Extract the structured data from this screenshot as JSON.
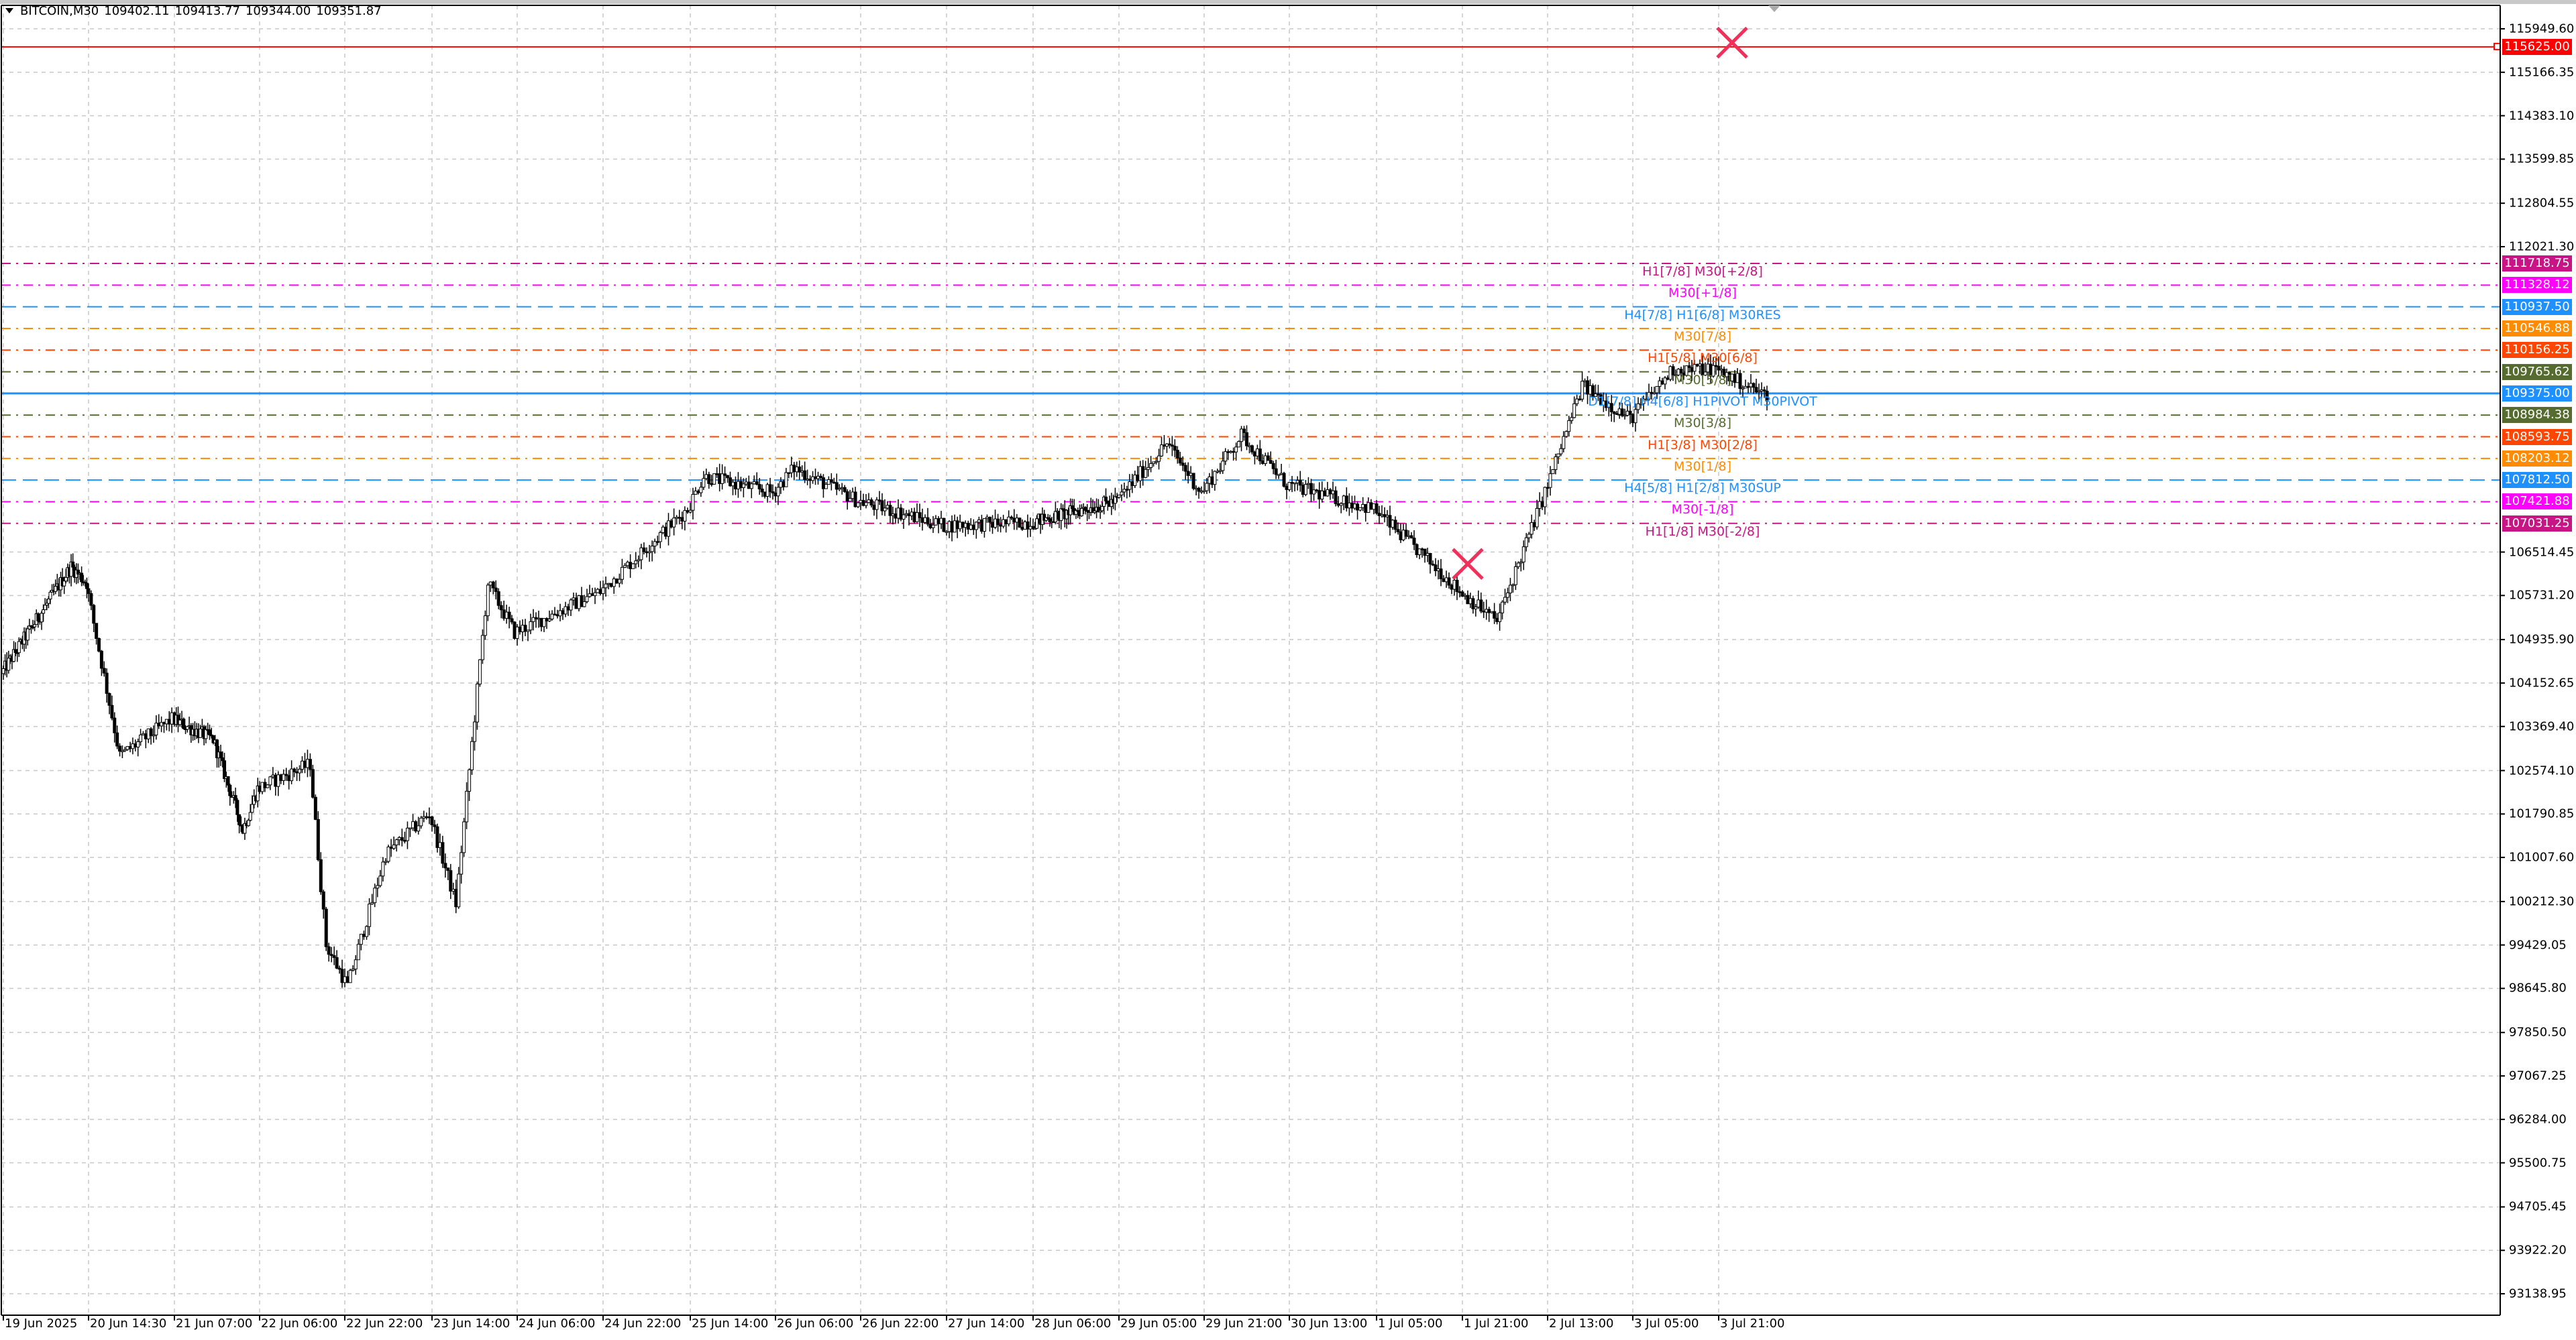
{
  "header": {
    "symbol": "BITCOIN,M30",
    "open": "109402.11",
    "high": "109413.77",
    "low": "109344.00",
    "close": "109351.87"
  },
  "price_axis": [
    "115949.60",
    "115166.35",
    "114383.10",
    "113599.85",
    "112804.55",
    "112021.30",
    "106514.45",
    "105731.20",
    "104935.90",
    "104152.65",
    "103369.40",
    "102574.10",
    "101790.85",
    "101007.60",
    "100212.30",
    "99429.05",
    "98645.80",
    "97850.50",
    "97067.25",
    "96284.00",
    "95500.75",
    "94705.45",
    "93922.20",
    "93138.95"
  ],
  "time_axis": [
    "19 Jun 2025",
    "20 Jun 14:30",
    "21 Jun 07:00",
    "22 Jun 06:00",
    "22 Jun 22:00",
    "23 Jun 14:00",
    "24 Jun 06:00",
    "24 Jun 22:00",
    "25 Jun 14:00",
    "26 Jun 06:00",
    "26 Jun 22:00",
    "27 Jun 14:00",
    "28 Jun 06:00",
    "29 Jun 05:00",
    "29 Jun 21:00",
    "30 Jun 13:00",
    "1 Jul 05:00",
    "1 Jul 21:00",
    "2 Jul 13:00",
    "3 Jul 05:00",
    "3 Jul 21:00"
  ],
  "target_line": {
    "price": "115625.00",
    "color": "#ff0000"
  },
  "levels": [
    {
      "price": "111718.75",
      "label": "H1[7/8] M30[+2/8]",
      "color": "#c71585",
      "style": "dashdot"
    },
    {
      "price": "111328.12",
      "label": "M30[+1/8]",
      "color": "#ff00ff",
      "style": "dashdot"
    },
    {
      "price": "110937.50",
      "label": "H4[7/8] H1[6/8] M30RES",
      "color": "#1e90ff",
      "style": "dash"
    },
    {
      "price": "110546.88",
      "label": "M30[7/8]",
      "color": "#ff8c00",
      "style": "dashdot"
    },
    {
      "price": "110156.25",
      "label": "H1[5/8] M30[6/8]",
      "color": "#ff4500",
      "style": "dashdot"
    },
    {
      "price": "109765.62",
      "label": "M30[5/8]",
      "color": "#556b2f",
      "style": "dashdot"
    },
    {
      "price": "109375.00",
      "label": "D1[7/8] H4[6/8] H1PIVOT M30PIVOT",
      "color": "#1e90ff",
      "style": "solid"
    },
    {
      "price": "108984.38",
      "label": "M30[3/8]",
      "color": "#556b2f",
      "style": "dashdot"
    },
    {
      "price": "108593.75",
      "label": "H1[3/8] M30[2/8]",
      "color": "#ff4500",
      "style": "dashdot"
    },
    {
      "price": "108203.12",
      "label": "M30[1/8]",
      "color": "#ff8c00",
      "style": "dashdot"
    },
    {
      "price": "107812.50",
      "label": "H4[5/8] H1[2/8] M30SUP",
      "color": "#1e90ff",
      "style": "dash"
    },
    {
      "price": "107421.88",
      "label": "M30[-1/8]",
      "color": "#ff00ff",
      "style": "dashdot"
    },
    {
      "price": "107031.25",
      "label": "H1[1/8] M30[-2/8]",
      "color": "#c71585",
      "style": "dashdot"
    }
  ],
  "markers": [
    {
      "icon": "cross-icon",
      "time": "3 Jul 23:30",
      "price": 115700,
      "color": "#f0305a"
    },
    {
      "icon": "cross-icon",
      "time": "1 Jul 22:00",
      "price": 106300,
      "color": "#f0305a"
    }
  ],
  "chart_data": {
    "type": "candlestick",
    "timeframe": "M30",
    "ylim": [
      93138.95,
      116100
    ],
    "grid": true,
    "price_path": [
      {
        "t": "19 Jun 14:00",
        "p": 104323
      },
      {
        "t": "20 Jun 10:00",
        "p": 106251
      },
      {
        "t": "20 Jun 14:30",
        "p": 105954
      },
      {
        "t": "20 Jun 21:00",
        "p": 102840
      },
      {
        "t": "21 Jun 07:00",
        "p": 103500
      },
      {
        "t": "21 Jun 18:00",
        "p": 103136
      },
      {
        "t": "22 Jun 02:00",
        "p": 101505
      },
      {
        "t": "22 Jun 06:00",
        "p": 102246
      },
      {
        "t": "22 Jun 16:00",
        "p": 102691
      },
      {
        "t": "22 Jun 19:00",
        "p": 99429
      },
      {
        "t": "22 Jun 23:00",
        "p": 98687
      },
      {
        "t": "23 Jun 06:00",
        "p": 101060
      },
      {
        "t": "23 Jun 14:00",
        "p": 101802
      },
      {
        "t": "23 Jun 19:00",
        "p": 100171
      },
      {
        "t": "24 Jun 01:00",
        "p": 105954
      },
      {
        "t": "24 Jun 06:00",
        "p": 105064
      },
      {
        "t": "24 Jun 22:00",
        "p": 105806
      },
      {
        "t": "25 Jun 14:00",
        "p": 107289
      },
      {
        "t": "25 Jun 17:00",
        "p": 107882
      },
      {
        "t": "26 Jun 06:00",
        "p": 107585
      },
      {
        "t": "26 Jun 10:00",
        "p": 108030
      },
      {
        "t": "26 Jun 22:00",
        "p": 107437
      },
      {
        "t": "27 Jun 14:00",
        "p": 106992
      },
      {
        "t": "28 Jun 06:00",
        "p": 107051
      },
      {
        "t": "29 Jun 05:00",
        "p": 107437
      },
      {
        "t": "29 Jun 14:30",
        "p": 108475
      },
      {
        "t": "29 Jun 21:00",
        "p": 107585
      },
      {
        "t": "30 Jun 04:30",
        "p": 108623
      },
      {
        "t": "30 Jun 13:00",
        "p": 107734
      },
      {
        "t": "1 Jul 05:00",
        "p": 107289
      },
      {
        "t": "1 Jul 18:00",
        "p": 106103
      },
      {
        "t": "1 Jul 21:00",
        "p": 105806
      },
      {
        "t": "2 Jul 04:00",
        "p": 105272
      },
      {
        "t": "2 Jul 13:00",
        "p": 107585
      },
      {
        "t": "2 Jul 20:00",
        "p": 109513
      },
      {
        "t": "3 Jul 05:00",
        "p": 108920
      },
      {
        "t": "3 Jul 13:00",
        "p": 109810
      },
      {
        "t": "3 Jul 21:00",
        "p": 109810
      },
      {
        "t": "4 Jul 06:00",
        "p": 109352
      }
    ]
  }
}
